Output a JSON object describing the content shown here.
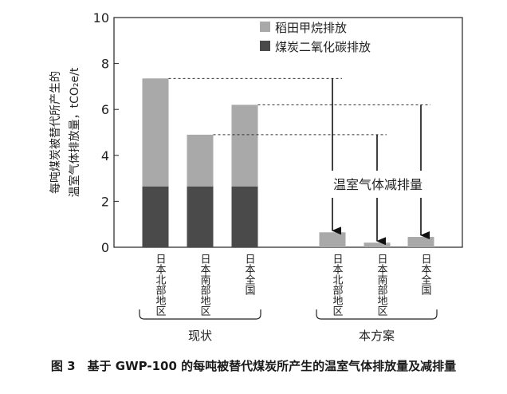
{
  "chart_data": {
    "type": "bar",
    "stacked": true,
    "ylim": [
      0,
      10
    ],
    "yticks": [
      0,
      2,
      4,
      6,
      8,
      10
    ],
    "ylabel_line1": "每吨煤炭被替代所产生的",
    "ylabel_line2": "温室气体排放量，tCO₂e/t",
    "categories": [
      "日本北部地区",
      "日本南部地区",
      "日本全国",
      "日本北部地区",
      "日本南部地区",
      "日本全国"
    ],
    "groups": [
      {
        "label": "现状",
        "category_indices": [
          0,
          1,
          2
        ]
      },
      {
        "label": "本方案",
        "category_indices": [
          3,
          4,
          5
        ]
      }
    ],
    "series": [
      {
        "name": "煤炭二氧化碳排放",
        "color": "#4a4a4a",
        "values": [
          2.65,
          2.65,
          2.65,
          0,
          0,
          0
        ]
      },
      {
        "name": "稻田甲烷排放",
        "color": "#a9a9a9",
        "values": [
          4.7,
          2.25,
          3.55,
          0.65,
          0.2,
          0.45
        ]
      }
    ],
    "legend_order": [
      1,
      0
    ],
    "legend_position": "top-right",
    "annotation": "温室气体减排量",
    "reductions": [
      {
        "from": 0,
        "to": 3
      },
      {
        "from": 1,
        "to": 4
      },
      {
        "from": 2,
        "to": 5
      }
    ]
  },
  "caption": "图 3　基于 GWP-100 的每吨被替代煤炭所产生的温室气体排放量及减排量"
}
